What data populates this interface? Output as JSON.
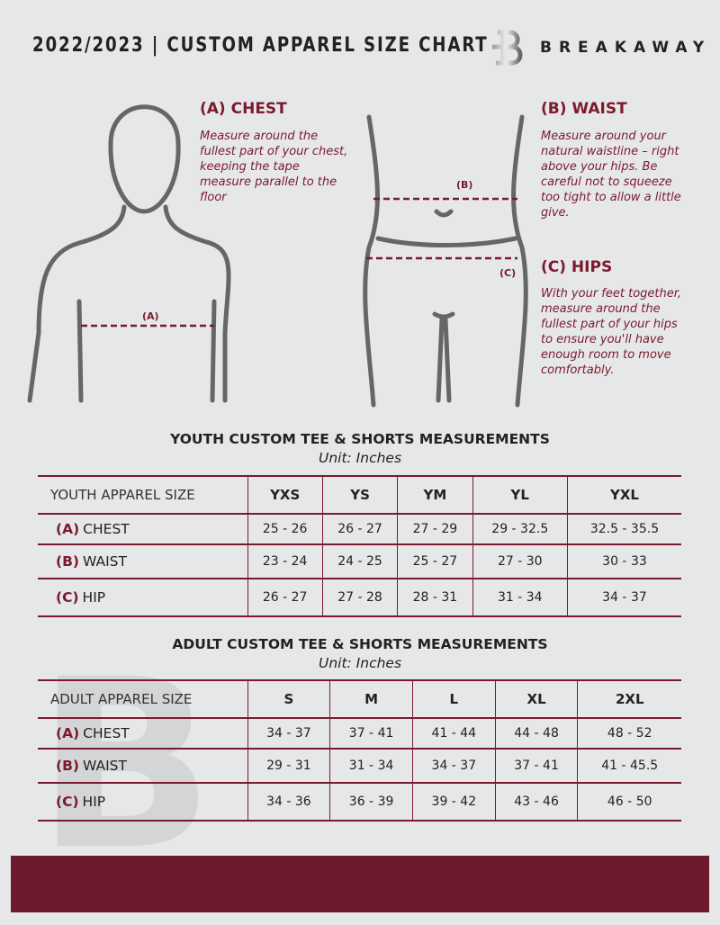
{
  "header": {
    "title": "2022/2023  |  CUSTOM APPAREL SIZE CHART",
    "brand": "BREAKAWAY"
  },
  "colors": {
    "accent": "#7a1a2e",
    "background": "#e6e7e8",
    "footer": "#6e1a2d"
  },
  "figure": {
    "chest_marker": "(A)",
    "waist_marker": "(B)",
    "hips_marker": "(C)"
  },
  "guide": {
    "chest": {
      "title": "(A) CHEST",
      "text": "Measure around the fullest part of your chest, keeping the tape measure parallel to the floor"
    },
    "waist": {
      "title": "(B) WAIST",
      "text": "Measure around your natural waistline – right above your hips. Be careful not to squeeze too tight to allow a little give."
    },
    "hips": {
      "title": "(C) HIPS",
      "text": "With your feet together, measure around the fullest part of your hips to ensure you'll have enough room to move comfortably."
    }
  },
  "youth": {
    "title": "YOUTH CUSTOM TEE & SHORTS MEASUREMENTS",
    "unit": "Unit: Inches",
    "header": "YOUTH APPAREL SIZE",
    "sizes": [
      "YXS",
      "YS",
      "YM",
      "YL",
      "YXL"
    ],
    "rows": [
      {
        "letter": "(A)",
        "name": "CHEST",
        "values": [
          "25 - 26",
          "26 - 27",
          "27 - 29",
          "29 - 32.5",
          "32.5 - 35.5"
        ]
      },
      {
        "letter": "(B)",
        "name": "WAIST",
        "values": [
          "23 - 24",
          "24 - 25",
          "25 - 27",
          "27 - 30",
          "30 - 33"
        ]
      },
      {
        "letter": "(C)",
        "name": "HIP",
        "values": [
          "26 - 27",
          "27 - 28",
          "28 - 31",
          "31 - 34",
          "34 - 37"
        ]
      }
    ]
  },
  "adult": {
    "title": "ADULT CUSTOM TEE & SHORTS MEASUREMENTS",
    "unit": "Unit: Inches",
    "header": "ADULT APPAREL SIZE",
    "sizes": [
      "S",
      "M",
      "L",
      "XL",
      "2XL"
    ],
    "rows": [
      {
        "letter": "(A)",
        "name": "CHEST",
        "values": [
          "34 - 37",
          "37 - 41",
          "41 - 44",
          "44 - 48",
          "48 - 52"
        ]
      },
      {
        "letter": "(B)",
        "name": "WAIST",
        "values": [
          "29 - 31",
          "31 - 34",
          "34 - 37",
          "37 - 41",
          "41 - 45.5"
        ]
      },
      {
        "letter": "(C)",
        "name": "HIP",
        "values": [
          "34 - 36",
          "36 - 39",
          "39 - 42",
          "43 - 46",
          "46 - 50"
        ]
      }
    ]
  }
}
